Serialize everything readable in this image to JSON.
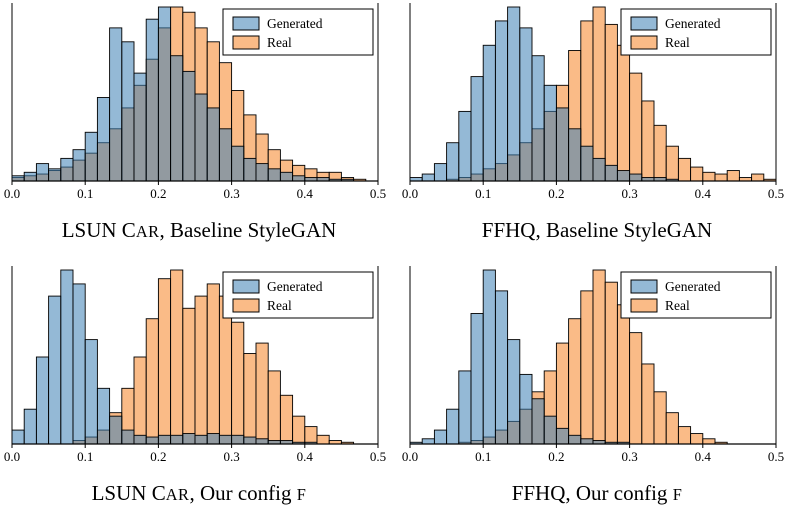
{
  "figure": {
    "background": "#ffffff",
    "edge_color": "#000000",
    "series_styles": {
      "Generated": {
        "fill": "#3d7fb5",
        "opacity": 0.55
      },
      "Real": {
        "fill": "#f79646",
        "opacity": 0.65
      }
    },
    "legend": {
      "position": "upper-right",
      "items": [
        {
          "label": "Generated",
          "series": "Generated"
        },
        {
          "label": "Real",
          "series": "Real"
        }
      ]
    },
    "x_ticks": [
      "0.0",
      "0.1",
      "0.2",
      "0.3",
      "0.4",
      "0.5"
    ]
  },
  "chart_data": [
    {
      "type": "bar",
      "subtype": "histogram",
      "title": "LSUN Car, Baseline StyleGAN",
      "title_parts": [
        {
          "t": "LSUN C"
        },
        {
          "t": "AR",
          "sc": true
        },
        {
          "t": ", Baseline StyleGAN"
        }
      ],
      "x_range": [
        0.0,
        0.5
      ],
      "bin_start": 0.0,
      "bin_width": 0.01667,
      "ylim": [
        0,
        1
      ],
      "grid": false,
      "legend_position": "upper-right",
      "series": [
        {
          "name": "Generated",
          "values": [
            0.03,
            0.05,
            0.1,
            0.07,
            0.13,
            0.18,
            0.28,
            0.48,
            0.88,
            0.8,
            0.62,
            0.93,
            1.0,
            0.72,
            0.63,
            0.5,
            0.42,
            0.3,
            0.2,
            0.13,
            0.1,
            0.07,
            0.05,
            0.03,
            0.02,
            0.02,
            0.01,
            0.01,
            0,
            0
          ]
        },
        {
          "name": "Real",
          "values": [
            0.02,
            0.03,
            0.04,
            0.06,
            0.08,
            0.12,
            0.16,
            0.22,
            0.3,
            0.42,
            0.55,
            0.7,
            0.88,
            1.0,
            0.97,
            0.88,
            0.8,
            0.68,
            0.52,
            0.38,
            0.27,
            0.18,
            0.12,
            0.09,
            0.07,
            0.05,
            0.05,
            0.02,
            0.01,
            0
          ]
        }
      ]
    },
    {
      "type": "bar",
      "subtype": "histogram",
      "title": "FFHQ, Baseline StyleGAN",
      "title_parts": [
        {
          "t": "FFHQ, Baseline StyleGAN"
        }
      ],
      "x_range": [
        0.0,
        0.5
      ],
      "bin_start": 0.0,
      "bin_width": 0.01667,
      "ylim": [
        0,
        1
      ],
      "grid": false,
      "legend_position": "upper-right",
      "series": [
        {
          "name": "Generated",
          "values": [
            0.02,
            0.04,
            0.1,
            0.22,
            0.4,
            0.6,
            0.78,
            0.92,
            1.0,
            0.88,
            0.72,
            0.55,
            0.42,
            0.3,
            0.2,
            0.13,
            0.09,
            0.06,
            0.04,
            0.02,
            0.02,
            0.01,
            0,
            0,
            0,
            0,
            0,
            0,
            0,
            0
          ]
        },
        {
          "name": "Real",
          "values": [
            0,
            0,
            0,
            0.01,
            0.02,
            0.04,
            0.07,
            0.1,
            0.15,
            0.22,
            0.3,
            0.4,
            0.55,
            0.75,
            0.92,
            1.0,
            0.9,
            0.78,
            0.62,
            0.46,
            0.32,
            0.2,
            0.13,
            0.08,
            0.05,
            0.04,
            0.06,
            0.02,
            0.04,
            0.01
          ]
        }
      ]
    },
    {
      "type": "bar",
      "subtype": "histogram",
      "title": "LSUN Car, Our config F",
      "title_parts": [
        {
          "t": "LSUN C"
        },
        {
          "t": "AR",
          "sc": true
        },
        {
          "t": ", Our config "
        },
        {
          "t": "F",
          "sc": true
        }
      ],
      "x_range": [
        0.0,
        0.5
      ],
      "bin_start": 0.0,
      "bin_width": 0.01667,
      "ylim": [
        0,
        1
      ],
      "grid": false,
      "legend_position": "upper-right",
      "series": [
        {
          "name": "Generated",
          "values": [
            0.08,
            0.2,
            0.5,
            0.85,
            1.0,
            0.92,
            0.6,
            0.32,
            0.16,
            0.08,
            0.05,
            0.04,
            0.05,
            0.05,
            0.06,
            0.05,
            0.06,
            0.05,
            0.05,
            0.04,
            0.03,
            0.02,
            0.02,
            0.01,
            0.01,
            0,
            0,
            0,
            0,
            0
          ]
        },
        {
          "name": "Real",
          "values": [
            0,
            0,
            0,
            0,
            0,
            0.02,
            0.04,
            0.08,
            0.18,
            0.32,
            0.5,
            0.72,
            0.95,
            1.0,
            0.78,
            0.85,
            0.92,
            0.85,
            0.7,
            0.52,
            0.58,
            0.42,
            0.28,
            0.16,
            0.1,
            0.05,
            0.02,
            0.01,
            0,
            0
          ]
        }
      ]
    },
    {
      "type": "bar",
      "subtype": "histogram",
      "title": "FFHQ, Our config F",
      "title_parts": [
        {
          "t": "FFHQ, Our config "
        },
        {
          "t": "F",
          "sc": true
        }
      ],
      "x_range": [
        0.0,
        0.5
      ],
      "bin_start": 0.0,
      "bin_width": 0.01667,
      "ylim": [
        0,
        1
      ],
      "grid": false,
      "legend_position": "upper-right",
      "series": [
        {
          "name": "Generated",
          "values": [
            0.01,
            0.03,
            0.08,
            0.2,
            0.42,
            0.75,
            1.0,
            0.88,
            0.6,
            0.4,
            0.26,
            0.16,
            0.09,
            0.05,
            0.03,
            0.02,
            0.01,
            0.01,
            0,
            0,
            0,
            0,
            0,
            0,
            0,
            0,
            0,
            0,
            0,
            0
          ]
        },
        {
          "name": "Real",
          "values": [
            0,
            0,
            0,
            0,
            0.01,
            0.02,
            0.04,
            0.08,
            0.13,
            0.2,
            0.3,
            0.42,
            0.58,
            0.72,
            0.88,
            1.0,
            0.93,
            0.8,
            0.64,
            0.46,
            0.3,
            0.18,
            0.1,
            0.06,
            0.03,
            0.01,
            0,
            0,
            0,
            0
          ]
        }
      ]
    }
  ]
}
